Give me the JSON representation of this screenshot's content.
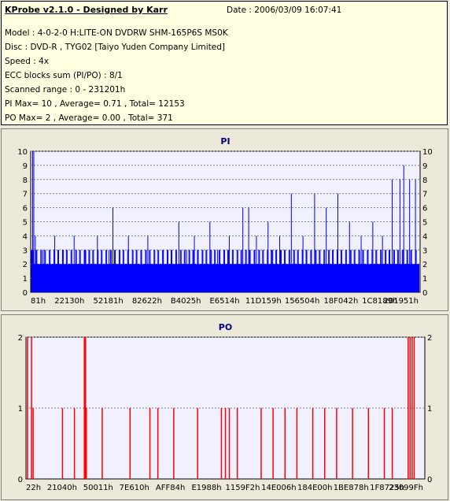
{
  "info": {
    "title": "KProbe v2.1.0 - Designed by Karr",
    "date": "Date : 2006/03/09 16:07:41",
    "lines": [
      "Model : 4-0-2-0 H:LITE-ON DVDRW SHM-165P6S MS0K",
      "Disc : DVD-R , TYG02 [Taiyo Yuden Company Limited]",
      "Speed : 4x",
      "ECC blocks sum (PI/PO) : 8/1",
      "Scanned range : 0 - 231201h",
      "PI Max= 10 , Average= 0.71 , Total= 12153",
      "PO Max= 2 , Average= 0.00 , Total= 371"
    ]
  },
  "colors": {
    "panel_bg": "#ffffe1",
    "window_bg": "#ece9d8",
    "plot_bg": "#f0f0ff",
    "pi_bars": "#0000ff",
    "po_bars": "#ff0000",
    "title_text": "#000080"
  },
  "chart_data": [
    {
      "type": "bar",
      "title": "PI",
      "ylim": [
        0,
        10
      ],
      "yticks": [
        0,
        1,
        2,
        3,
        4,
        5,
        6,
        7,
        8,
        9,
        10
      ],
      "x_tick_labels": [
        "81h",
        "22130h",
        "52181h",
        "82622h",
        "B4025h",
        "E6514h",
        "11D159h",
        "156504h",
        "18F042h",
        "1C8189h",
        "201951h"
      ],
      "grid": true,
      "baseline": 2,
      "spikes": [
        {
          "x": 0.003,
          "value": 10
        },
        {
          "x": 0.006,
          "value": 10
        },
        {
          "x": 0.01,
          "value": 4
        },
        {
          "x": 0.03,
          "value": 3
        },
        {
          "x": 0.06,
          "value": 4
        },
        {
          "x": 0.08,
          "value": 3
        },
        {
          "x": 0.11,
          "value": 4
        },
        {
          "x": 0.14,
          "value": 3
        },
        {
          "x": 0.17,
          "value": 4
        },
        {
          "x": 0.2,
          "value": 3
        },
        {
          "x": 0.21,
          "value": 6
        },
        {
          "x": 0.25,
          "value": 4
        },
        {
          "x": 0.3,
          "value": 4
        },
        {
          "x": 0.34,
          "value": 3
        },
        {
          "x": 0.38,
          "value": 5
        },
        {
          "x": 0.4,
          "value": 3
        },
        {
          "x": 0.42,
          "value": 4
        },
        {
          "x": 0.46,
          "value": 5
        },
        {
          "x": 0.48,
          "value": 3
        },
        {
          "x": 0.51,
          "value": 4
        },
        {
          "x": 0.545,
          "value": 6
        },
        {
          "x": 0.56,
          "value": 6
        },
        {
          "x": 0.58,
          "value": 4
        },
        {
          "x": 0.61,
          "value": 5
        },
        {
          "x": 0.64,
          "value": 4
        },
        {
          "x": 0.67,
          "value": 7
        },
        {
          "x": 0.7,
          "value": 4
        },
        {
          "x": 0.73,
          "value": 7
        },
        {
          "x": 0.76,
          "value": 6
        },
        {
          "x": 0.79,
          "value": 7
        },
        {
          "x": 0.82,
          "value": 5
        },
        {
          "x": 0.85,
          "value": 4
        },
        {
          "x": 0.88,
          "value": 5
        },
        {
          "x": 0.905,
          "value": 4
        },
        {
          "x": 0.93,
          "value": 8
        },
        {
          "x": 0.95,
          "value": 8
        },
        {
          "x": 0.96,
          "value": 9
        },
        {
          "x": 0.975,
          "value": 8
        },
        {
          "x": 0.99,
          "value": 8
        }
      ]
    },
    {
      "type": "bar",
      "title": "PO",
      "ylim": [
        0,
        2
      ],
      "yticks": [
        0,
        1,
        2
      ],
      "x_tick_labels": [
        "22h",
        "21040h",
        "50011h",
        "7E610h",
        "AFF84h",
        "E1988h",
        "1159F2h",
        "14E006h",
        "184E00h",
        "1BE878h",
        "1F8725h",
        "23099Fh"
      ],
      "grid": true,
      "values": [
        {
          "x": 0.002,
          "value": 2
        },
        {
          "x": 0.012,
          "value": 2
        },
        {
          "x": 0.016,
          "value": 1
        },
        {
          "x": 0.09,
          "value": 1
        },
        {
          "x": 0.12,
          "value": 1
        },
        {
          "x": 0.145,
          "value": 2
        },
        {
          "x": 0.148,
          "value": 2
        },
        {
          "x": 0.15,
          "value": 1
        },
        {
          "x": 0.19,
          "value": 1
        },
        {
          "x": 0.26,
          "value": 1
        },
        {
          "x": 0.31,
          "value": 1
        },
        {
          "x": 0.33,
          "value": 1
        },
        {
          "x": 0.37,
          "value": 1
        },
        {
          "x": 0.43,
          "value": 1
        },
        {
          "x": 0.49,
          "value": 1
        },
        {
          "x": 0.5,
          "value": 1
        },
        {
          "x": 0.51,
          "value": 1
        },
        {
          "x": 0.53,
          "value": 1
        },
        {
          "x": 0.59,
          "value": 1
        },
        {
          "x": 0.62,
          "value": 1
        },
        {
          "x": 0.65,
          "value": 1
        },
        {
          "x": 0.68,
          "value": 1
        },
        {
          "x": 0.72,
          "value": 1
        },
        {
          "x": 0.75,
          "value": 1
        },
        {
          "x": 0.78,
          "value": 1
        },
        {
          "x": 0.82,
          "value": 1
        },
        {
          "x": 0.86,
          "value": 1
        },
        {
          "x": 0.9,
          "value": 1
        },
        {
          "x": 0.92,
          "value": 1
        },
        {
          "x": 0.96,
          "value": 2
        },
        {
          "x": 0.965,
          "value": 2
        },
        {
          "x": 0.97,
          "value": 2
        },
        {
          "x": 0.975,
          "value": 2
        }
      ]
    }
  ]
}
